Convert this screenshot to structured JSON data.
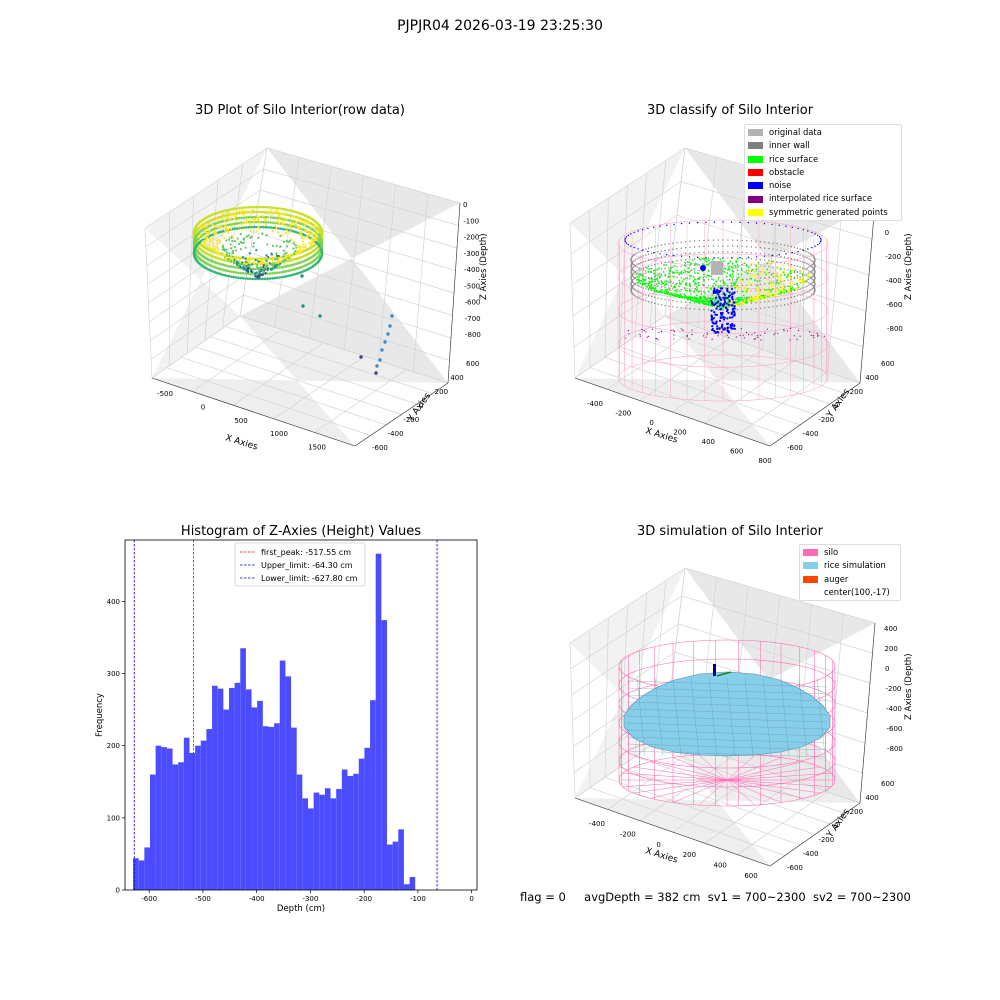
{
  "suptitle": "PJPJR04 2026-03-19 23:25:30",
  "footer": {
    "flag": "flag = 0",
    "avg_depth": "avgDepth = 382 cm",
    "sv1": "sv1 = 700~2300",
    "sv2": "sv2 = 700~2300"
  },
  "chart_data": [
    {
      "type": "scatter",
      "title": "3D Plot of Silo Interior(row data)",
      "xlabel": "X Axies",
      "ylabel": "Y Axies",
      "zlabel": "Z Axies (Depth)",
      "x_ticks": [
        -500,
        0,
        500,
        1000,
        1500,
        2000
      ],
      "y_ticks": [
        -600,
        -400,
        -200,
        0,
        200,
        400,
        600
      ],
      "z_ticks": [
        0,
        -100,
        -200,
        -300,
        -400,
        -500,
        -600,
        -700,
        -800
      ],
      "colormap": "viridis"
    },
    {
      "type": "scatter",
      "title": "3D classify of Silo Interior",
      "xlabel": "X Axies",
      "ylabel": "Y Axies",
      "zlabel": "Z Axies (Depth)",
      "x_ticks": [
        -400,
        -200,
        0,
        200,
        400,
        600,
        800
      ],
      "y_ticks": [
        -600,
        -400,
        -200,
        0,
        200,
        400,
        600
      ],
      "z_ticks": [
        200,
        0,
        -200,
        -400,
        -600,
        -800
      ],
      "legend": [
        {
          "name": "original data",
          "color": "#b3b3b3"
        },
        {
          "name": "inner wall",
          "color": "#808080"
        },
        {
          "name": "rice surface",
          "color": "#00ff00"
        },
        {
          "name": "obstacle",
          "color": "#ff0000"
        },
        {
          "name": "noise",
          "color": "#0000ff"
        },
        {
          "name": "interpolated rice surface",
          "color": "#800080"
        },
        {
          "name": "symmetric generated points",
          "color": "#ffff00"
        }
      ],
      "legend_position": "top-right"
    },
    {
      "type": "bar",
      "title": "Histogram of Z-Axies (Height) Values",
      "xlabel": "Depth (cm)",
      "ylabel": "Frequency",
      "xlim": [
        -645,
        10
      ],
      "ylim": [
        0,
        485
      ],
      "x_ticks": [
        -600,
        -500,
        -400,
        -300,
        -200,
        -100,
        0
      ],
      "y_ticks": [
        0,
        100,
        200,
        300,
        400
      ],
      "bin_start": -630,
      "bin_width": 10.5,
      "values": [
        44,
        41,
        59,
        160,
        200,
        198,
        196,
        174,
        177,
        211,
        190,
        200,
        207,
        223,
        283,
        279,
        250,
        280,
        287,
        335,
        278,
        253,
        262,
        227,
        226,
        231,
        318,
        296,
        225,
        160,
        127,
        113,
        135,
        132,
        141,
        127,
        140,
        167,
        158,
        161,
        182,
        197,
        263,
        466,
        374,
        63,
        67,
        84,
        8,
        18
      ],
      "bar_color": "#4c4cff",
      "vlines": [
        {
          "label": "first_peak: -517.55 cm",
          "x": -517.55,
          "color": "#ff0000"
        },
        {
          "label": "Upper_limit: -64.30 cm",
          "x": -64.3,
          "color": "#0000cc"
        },
        {
          "label": "Lower_limit: -627.80 cm",
          "x": -627.8,
          "color": "#0000cc"
        }
      ],
      "legend_position": "top-center"
    },
    {
      "type": "surface",
      "title": "3D simulation of Silo Interior",
      "xlabel": "X Axies",
      "ylabel": "Y Axies",
      "zlabel": "Z Axies (Depth)",
      "x_ticks": [
        -400,
        -200,
        0,
        200,
        400,
        600
      ],
      "y_ticks": [
        -600,
        -400,
        -200,
        0,
        200,
        400,
        600
      ],
      "z_ticks": [
        400,
        200,
        0,
        -200,
        -400,
        -600,
        -800
      ],
      "legend": [
        {
          "name": "silo",
          "color": "#ff69b4"
        },
        {
          "name": "rice simulation",
          "color": "#87ceeb"
        },
        {
          "name": "auger",
          "color": "#ff4500"
        },
        {
          "name": "center(100,-17)",
          "color": ""
        }
      ],
      "legend_position": "top-right"
    }
  ]
}
